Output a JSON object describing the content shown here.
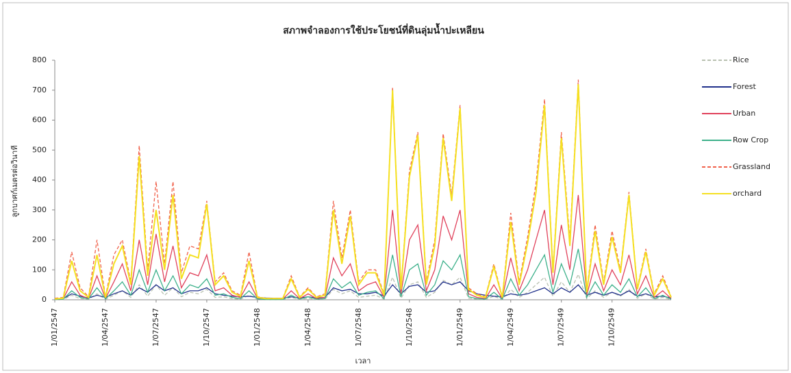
{
  "chart_data": {
    "type": "line",
    "title": "สภาพจำลองการใช้ประโยชน์ที่ดินลุ่มน้ำปะเหลียน",
    "y_label": "ลูกบาศก์เมตรต่อวินาที",
    "x_label": "เวลา",
    "categories": [
      "1/01/2547",
      null,
      null,
      null,
      null,
      null,
      "1/04/2547",
      null,
      null,
      null,
      null,
      null,
      "1/07/2547",
      null,
      null,
      null,
      null,
      null,
      "1/10/2547",
      null,
      null,
      null,
      null,
      null,
      "1/01/2548",
      null,
      null,
      null,
      null,
      null,
      "1/04/2548",
      null,
      null,
      null,
      null,
      null,
      "1/07/2548",
      null,
      null,
      null,
      null,
      null,
      "1/10/2548",
      null,
      null,
      null,
      null,
      null,
      "1/01/2549",
      null,
      null,
      null,
      null,
      null,
      "1/04/2549",
      null,
      null,
      null,
      null,
      null,
      "1/07/2549",
      null,
      null,
      null,
      null,
      null,
      "1/10/2549",
      null,
      null,
      null,
      null,
      null,
      null,
      null
    ],
    "ylim": [
      0,
      800
    ],
    "yticks": [
      0,
      100,
      200,
      300,
      400,
      500,
      600,
      700,
      800
    ],
    "legend": "right",
    "series": [
      {
        "name": "Rice",
        "color": "#b8c0b0",
        "dashed": true,
        "values": [
          1,
          1,
          15,
          4,
          2,
          20,
          2,
          15,
          30,
          8,
          50,
          12,
          50,
          15,
          40,
          10,
          25,
          20,
          35,
          8,
          10,
          4,
          2,
          15,
          2,
          1,
          1,
          1,
          8,
          1,
          5,
          1,
          2,
          35,
          20,
          30,
          8,
          12,
          15,
          2,
          75,
          5,
          50,
          60,
          8,
          25,
          65,
          50,
          75,
          5,
          2,
          1,
          12,
          1,
          35,
          8,
          25,
          50,
          75,
          12,
          60,
          25,
          85,
          4,
          30,
          8,
          25,
          12,
          35,
          5,
          20,
          2,
          8,
          1
        ]
      },
      {
        "name": "Forest",
        "color": "#1f2f8a",
        "dashed": false,
        "values": [
          3,
          4,
          20,
          12,
          6,
          15,
          8,
          20,
          30,
          15,
          40,
          25,
          50,
          30,
          40,
          20,
          30,
          30,
          40,
          20,
          15,
          12,
          10,
          12,
          8,
          6,
          5,
          5,
          10,
          6,
          10,
          6,
          8,
          40,
          30,
          35,
          20,
          20,
          25,
          12,
          50,
          20,
          45,
          50,
          25,
          30,
          60,
          50,
          60,
          30,
          20,
          15,
          12,
          10,
          20,
          15,
          20,
          30,
          40,
          20,
          40,
          25,
          50,
          15,
          25,
          15,
          25,
          15,
          30,
          12,
          20,
          10,
          12,
          6
        ]
      },
      {
        "name": "Urban",
        "color": "#e0405a",
        "dashed": false,
        "values": [
          2,
          3,
          60,
          15,
          4,
          80,
          4,
          60,
          120,
          30,
          200,
          50,
          220,
          60,
          180,
          40,
          90,
          80,
          150,
          30,
          40,
          15,
          8,
          60,
          5,
          2,
          2,
          2,
          30,
          4,
          20,
          4,
          8,
          140,
          80,
          120,
          30,
          50,
          60,
          8,
          300,
          20,
          200,
          250,
          30,
          100,
          280,
          200,
          300,
          20,
          8,
          4,
          50,
          4,
          140,
          30,
          100,
          200,
          300,
          50,
          250,
          100,
          350,
          15,
          120,
          30,
          100,
          50,
          150,
          20,
          80,
          8,
          30,
          4
        ]
      },
      {
        "name": "Row Crop",
        "color": "#3cb08a",
        "dashed": false,
        "values": [
          1,
          2,
          30,
          8,
          3,
          40,
          3,
          30,
          60,
          15,
          100,
          25,
          100,
          30,
          80,
          20,
          50,
          40,
          70,
          15,
          20,
          8,
          4,
          30,
          3,
          1,
          1,
          1,
          15,
          2,
          10,
          2,
          4,
          70,
          40,
          60,
          15,
          25,
          30,
          4,
          150,
          10,
          100,
          120,
          15,
          50,
          130,
          100,
          150,
          10,
          4,
          2,
          25,
          2,
          70,
          15,
          50,
          100,
          150,
          25,
          120,
          50,
          170,
          8,
          60,
          15,
          50,
          25,
          70,
          10,
          40,
          4,
          15,
          2
        ]
      },
      {
        "name": "Grassland",
        "color": "#f0604a",
        "dashed": true,
        "values": [
          5,
          8,
          160,
          40,
          10,
          200,
          10,
          150,
          200,
          60,
          515,
          100,
          395,
          120,
          395,
          90,
          180,
          170,
          330,
          60,
          90,
          30,
          15,
          160,
          10,
          5,
          5,
          5,
          80,
          10,
          40,
          10,
          20,
          330,
          140,
          300,
          60,
          100,
          100,
          20,
          710,
          40,
          430,
          560,
          60,
          200,
          555,
          350,
          650,
          40,
          20,
          10,
          120,
          10,
          290,
          60,
          210,
          390,
          670,
          100,
          560,
          200,
          735,
          30,
          250,
          60,
          230,
          100,
          360,
          40,
          170,
          20,
          80,
          10
        ]
      },
      {
        "name": "orchard",
        "color": "#f5e020",
        "dashed": false,
        "values": [
          3,
          5,
          130,
          30,
          8,
          150,
          8,
          120,
          180,
          50,
          480,
          80,
          300,
          100,
          350,
          70,
          150,
          140,
          320,
          50,
          80,
          25,
          12,
          130,
          8,
          4,
          4,
          4,
          70,
          8,
          35,
          8,
          15,
          300,
          120,
          280,
          50,
          90,
          90,
          15,
          700,
          35,
          410,
          550,
          50,
          180,
          540,
          330,
          640,
          35,
          15,
          8,
          110,
          8,
          260,
          50,
          190,
          360,
          650,
          90,
          540,
          180,
          720,
          25,
          230,
          50,
          210,
          90,
          350,
          35,
          160,
          15,
          70,
          8
        ]
      }
    ]
  }
}
